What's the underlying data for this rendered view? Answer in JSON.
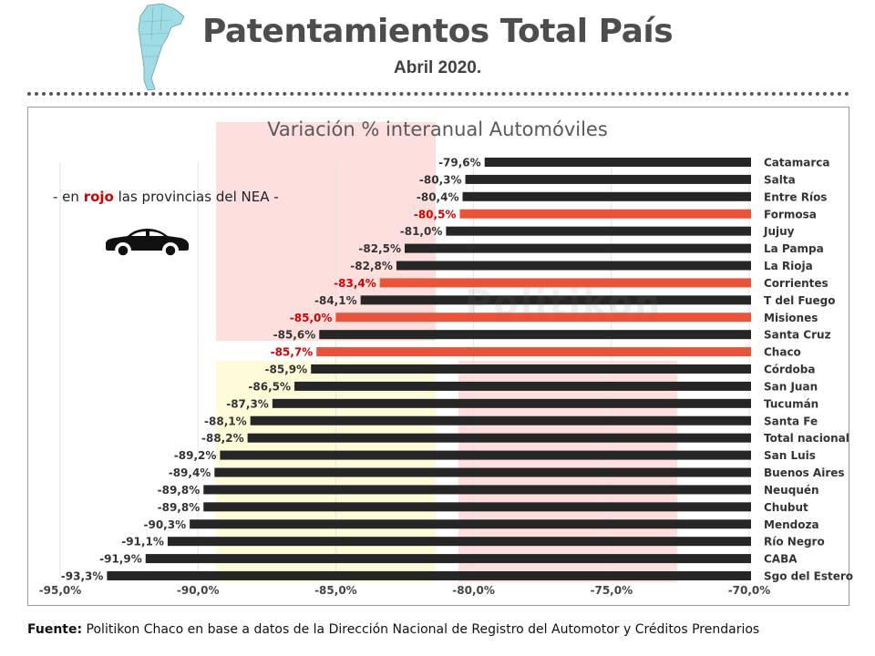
{
  "header": {
    "title": "Patentamientos Total País",
    "subtitle": "Abril 2020."
  },
  "note": {
    "prefix": "- en ",
    "highlight": "rojo",
    "suffix": " las provincias del NEA -"
  },
  "watermark": "Politikon",
  "footer": {
    "label": "Fuente:",
    "text": " Politikon Chaco en base a datos de la Dirección Nacional de Registro del Automotor y Créditos Prendarios"
  },
  "colors": {
    "default_bar": "#262626",
    "nea_bar": "#e8533a",
    "nea_label": "#d40000",
    "default_label": "#333333",
    "pink_band": "#fde0de",
    "yellow_band": "#fdfbd8"
  },
  "icons": [
    "argentina-map-icon",
    "car-icon"
  ],
  "chart_data": {
    "type": "bar",
    "orientation": "horizontal",
    "title": "Variación % interanual Automóviles",
    "xlim": [
      -95,
      -70
    ],
    "xticks": [
      "-95,0%",
      "-90,0%",
      "-85,0%",
      "-80,0%",
      "-75,0%",
      "-70,0%"
    ],
    "grid": "vertical",
    "categories": [
      "Catamarca",
      "Salta",
      "Entre Ríos",
      "Formosa",
      "Jujuy",
      "La Pampa",
      "La Rioja",
      "Corrientes",
      "T del Fuego",
      "Misiones",
      "Santa Cruz",
      "Chaco",
      "Córdoba",
      "San Juan",
      "Tucumán",
      "Santa Fe",
      "Total nacional",
      "San Luis",
      "Buenos Aires",
      "Neuquén",
      "Chubut",
      "Mendoza",
      "Río Negro",
      "CABA",
      "Sgo del Estero"
    ],
    "values": [
      -79.6,
      -80.3,
      -80.4,
      -80.5,
      -81.0,
      -82.5,
      -82.8,
      -83.4,
      -84.1,
      -85.0,
      -85.6,
      -85.7,
      -85.9,
      -86.5,
      -87.3,
      -88.1,
      -88.2,
      -89.2,
      -89.4,
      -89.8,
      -89.8,
      -90.3,
      -91.1,
      -91.9,
      -93.3
    ],
    "labels": [
      "-79,6%",
      "-80,3%",
      "-80,4%",
      "-80,5%",
      "-81,0%",
      "-82,5%",
      "-82,8%",
      "-83,4%",
      "-84,1%",
      "-85,0%",
      "-85,6%",
      "-85,7%",
      "-85,9%",
      "-86,5%",
      "-87,3%",
      "-88,1%",
      "-88,2%",
      "-89,2%",
      "-89,4%",
      "-89,8%",
      "-89,8%",
      "-90,3%",
      "-91,1%",
      "-91,9%",
      "-93,3%"
    ],
    "nea": [
      "Formosa",
      "Corrientes",
      "Misiones",
      "Chaco"
    ]
  }
}
